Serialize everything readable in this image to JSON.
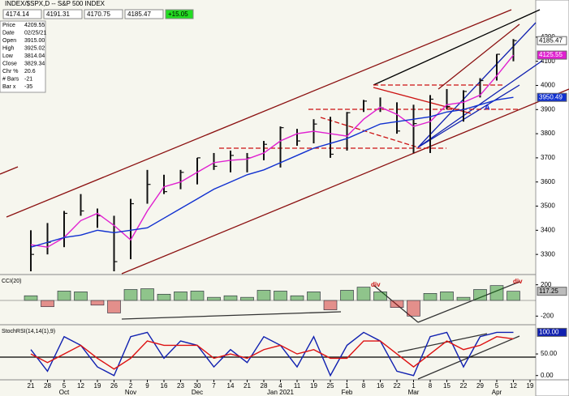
{
  "header": {
    "symbol": "INDEX/$SPX,D -- S&P 500 INDEX",
    "quote": [
      4174.14,
      4191.31,
      4170.75,
      4185.47
    ],
    "change": "+15.05"
  },
  "info_box": [
    [
      "Price",
      "4209.55"
    ],
    [
      "Date",
      "02/25/21"
    ],
    [
      "Open",
      "3915.00"
    ],
    [
      "High",
      "3925.02"
    ],
    [
      "Low",
      "3814.04"
    ],
    [
      "Close",
      "3829.34"
    ],
    [
      "Chr %",
      "20.6"
    ],
    [
      "# Bars",
      "-21"
    ],
    [
      "Bar x",
      "-35"
    ]
  ],
  "chart_data": [
    {
      "type": "ohlc",
      "categories": [
        "21",
        "28",
        "5",
        "12",
        "19",
        "26",
        "2",
        "9",
        "16",
        "23",
        "30",
        "7",
        "14",
        "21",
        "28",
        "4",
        "11",
        "19",
        "25",
        "1",
        "8",
        "16",
        "22",
        "1",
        "8",
        "15",
        "22",
        "29",
        "5",
        "12",
        "19"
      ],
      "months": [
        null,
        null,
        "Oct",
        null,
        null,
        null,
        "Nov",
        null,
        null,
        null,
        "Dec",
        null,
        null,
        null,
        null,
        "Jan 2021",
        null,
        null,
        null,
        "Feb",
        null,
        null,
        null,
        "Mar",
        null,
        null,
        null,
        null,
        "Apr",
        null,
        null
      ],
      "high": [
        3400,
        3430,
        3480,
        3550,
        3490,
        3460,
        3530,
        3650,
        3630,
        3650,
        3700,
        3720,
        3730,
        3720,
        3770,
        3830,
        3820,
        3860,
        3870,
        3890,
        3940,
        3950,
        3930,
        3920,
        3960,
        3985,
        3980,
        4030,
        4130,
        4192,
        null
      ],
      "low": [
        3230,
        3300,
        3330,
        3460,
        3410,
        3230,
        3280,
        3510,
        3550,
        3570,
        3590,
        3650,
        3640,
        3640,
        3690,
        3660,
        3750,
        3760,
        3700,
        3730,
        3890,
        3890,
        3800,
        3720,
        3720,
        3900,
        3850,
        3950,
        4020,
        4100,
        null
      ],
      "close": [
        3300,
        3350,
        3470,
        3480,
        3460,
        3270,
        3510,
        3590,
        3560,
        3640,
        3700,
        3665,
        3710,
        3700,
        3756,
        3825,
        3770,
        3840,
        3715,
        3887,
        3935,
        3907,
        3811,
        3842,
        3943,
        3913,
        3975,
        4020,
        4129,
        4185.47,
        null
      ],
      "bar_color": "#111111",
      "overlays": [
        {
          "color": "#e020d0",
          "values": [
            3340,
            3330,
            3370,
            3440,
            3470,
            3420,
            3360,
            3480,
            3580,
            3600,
            3640,
            3680,
            3690,
            3695,
            3720,
            3770,
            3800,
            3810,
            3800,
            3790,
            3860,
            3910,
            3880,
            3830,
            3850,
            3920,
            3930,
            3960,
            4040,
            4125.55,
            null
          ]
        },
        {
          "color": "#1030d0",
          "values": [
            3330,
            3350,
            3370,
            3380,
            3400,
            3390,
            3400,
            3410,
            3450,
            3490,
            3530,
            3570,
            3600,
            3630,
            3650,
            3680,
            3710,
            3740,
            3760,
            3780,
            3810,
            3840,
            3850,
            3860,
            3870,
            3890,
            3900,
            3920,
            3940,
            3950.49,
            null
          ]
        }
      ],
      "annotations": [
        "A"
      ],
      "ylim": [
        3220,
        4280
      ],
      "yticks": [
        3300,
        3400,
        3500,
        3600,
        3700,
        3800,
        3900,
        4000,
        4100,
        4200
      ]
    },
    {
      "type": "bar",
      "title": "CCI(20)",
      "values": [
        60,
        -80,
        120,
        110,
        -60,
        -160,
        140,
        150,
        80,
        110,
        120,
        40,
        60,
        40,
        130,
        120,
        60,
        110,
        -120,
        130,
        170,
        110,
        -90,
        -200,
        90,
        110,
        40,
        140,
        190,
        117.25,
        null
      ],
      "pos_color": "#118811",
      "neg_color": "#cc1111",
      "annotations": [
        "div"
      ],
      "ylim": [
        -300,
        300
      ],
      "yticks": [
        200,
        -200
      ]
    },
    {
      "type": "line",
      "title": "StochRSI(14,14(1),9)",
      "series": [
        {
          "color": "#1020b0",
          "values": [
            60,
            10,
            90,
            70,
            20,
            0,
            90,
            100,
            40,
            80,
            70,
            20,
            60,
            30,
            90,
            70,
            20,
            90,
            0,
            70,
            100,
            80,
            10,
            0,
            90,
            100,
            20,
            90,
            100,
            100,
            null
          ],
          "value_labels": [
            null,
            null,
            null,
            null,
            null,
            null,
            null,
            null,
            null,
            null,
            null,
            null,
            null,
            null,
            null,
            null,
            null,
            null,
            null,
            null,
            null,
            null,
            null,
            null,
            null,
            null,
            null,
            null,
            null,
            "100.00",
            null
          ]
        },
        {
          "color": "#dd1111",
          "values": [
            50,
            30,
            50,
            70,
            40,
            15,
            40,
            80,
            70,
            70,
            70,
            40,
            50,
            40,
            60,
            70,
            50,
            60,
            40,
            40,
            80,
            80,
            50,
            20,
            50,
            80,
            60,
            70,
            90,
            85,
            null
          ]
        }
      ],
      "ylim": [
        -8,
        112
      ],
      "yticks": [
        {
          "value": 50,
          "label": "50.00"
        },
        {
          "value": 0,
          "label": "0.00"
        }
      ]
    }
  ]
}
